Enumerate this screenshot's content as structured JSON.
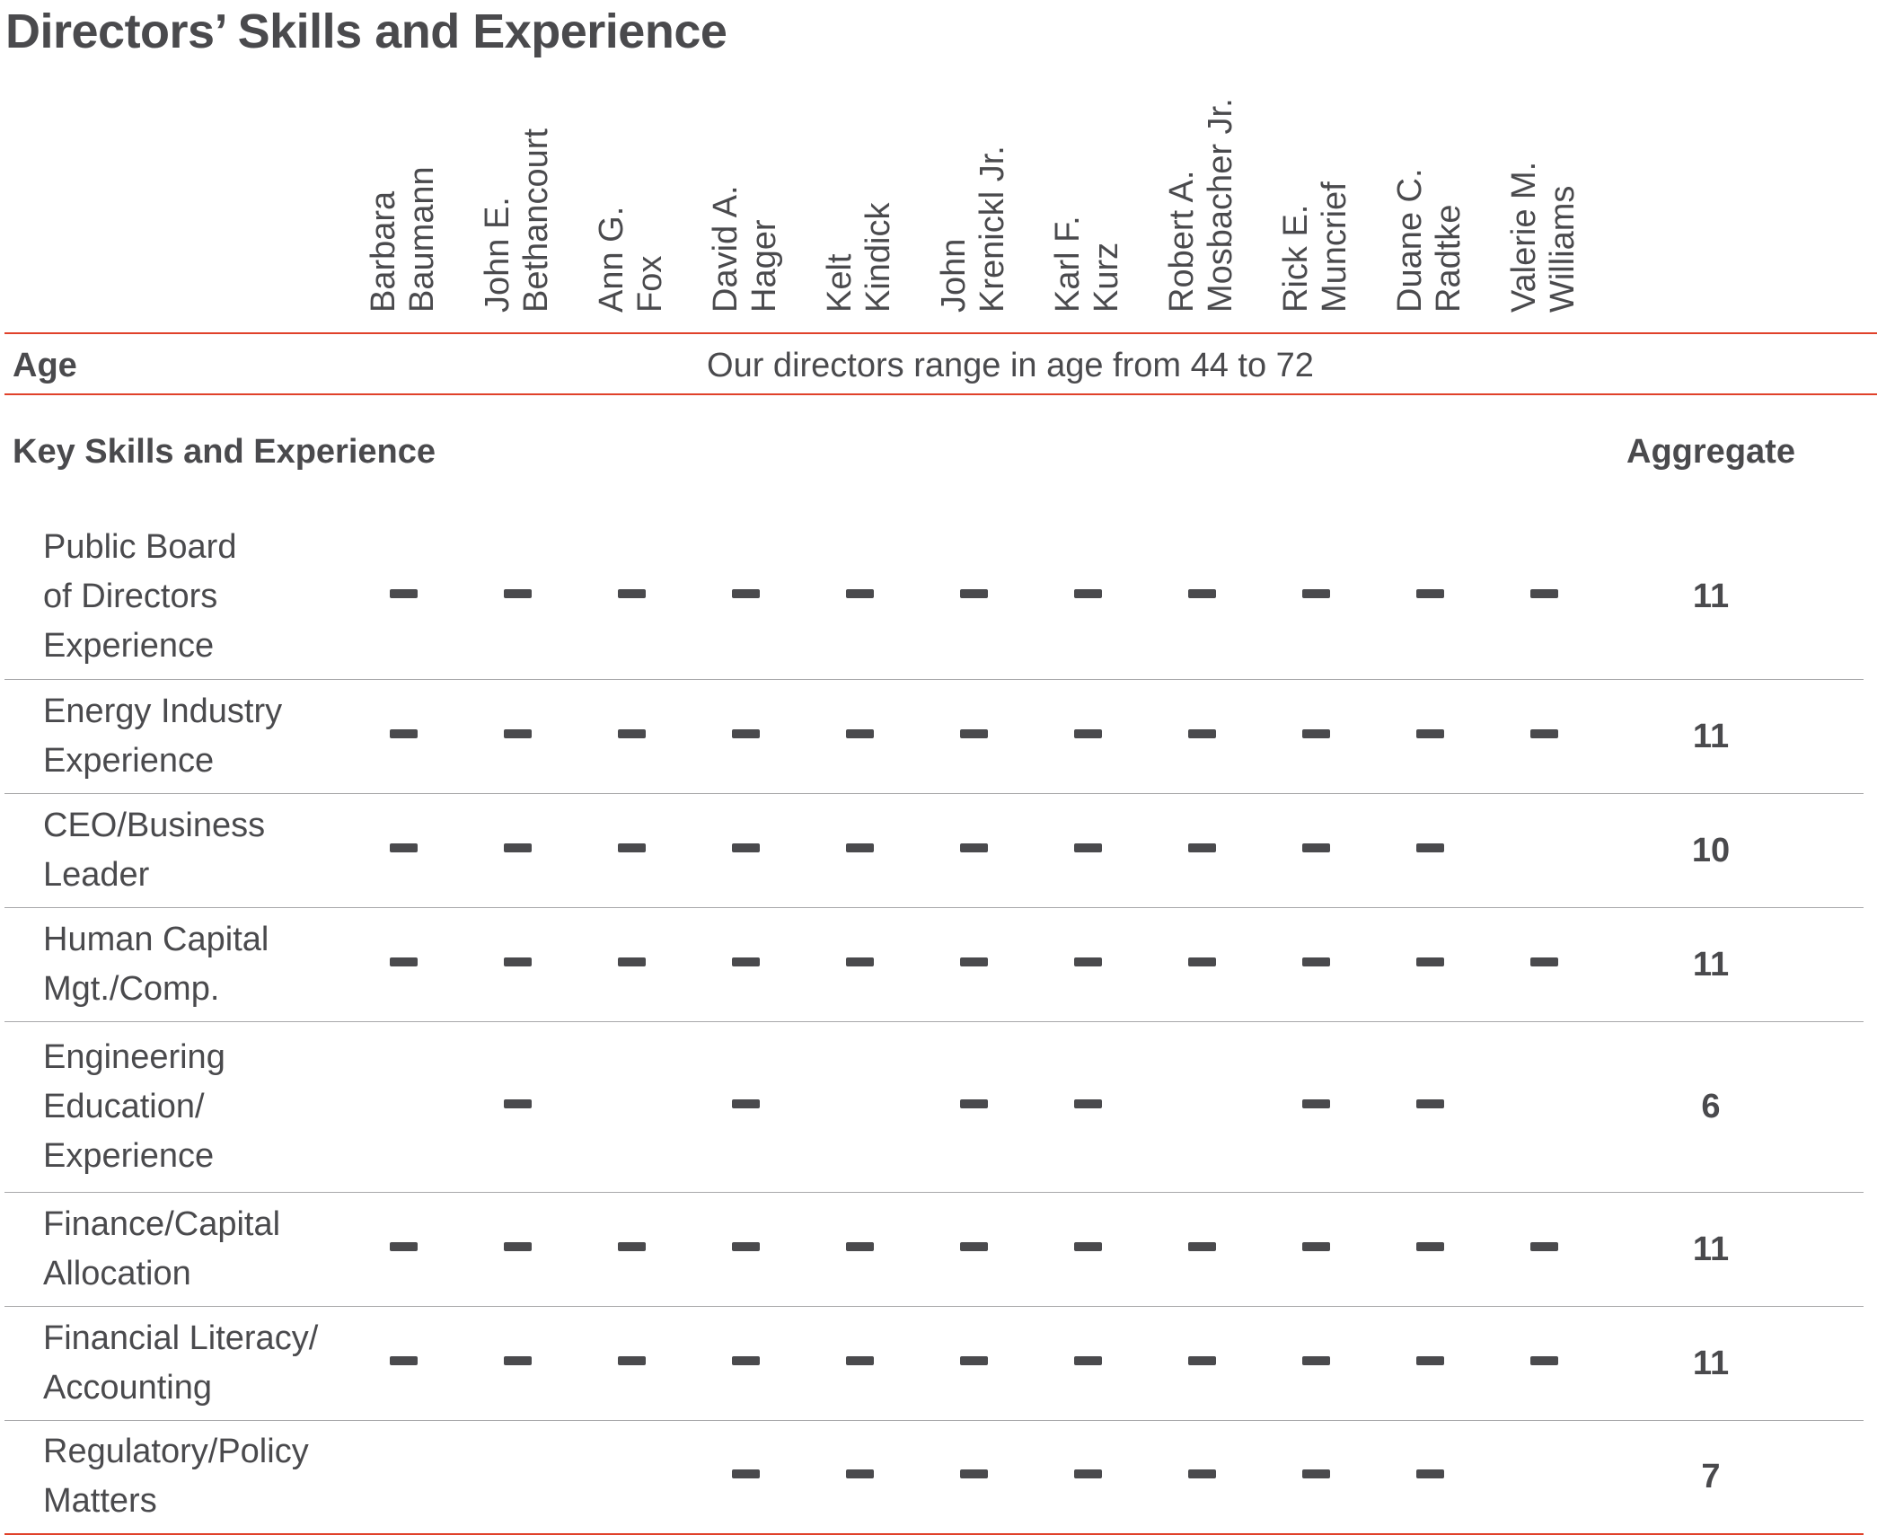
{
  "title": "Directors’ Skills and Experience",
  "directors": [
    {
      "first": "Barbara",
      "last": "Baumann"
    },
    {
      "first": "John E.",
      "last": "Bethancourt"
    },
    {
      "first": "Ann G.",
      "last": "Fox"
    },
    {
      "first": "David A.",
      "last": "Hager"
    },
    {
      "first": "Kelt",
      "last": "Kindick"
    },
    {
      "first": "John",
      "last": "Krenickl Jr."
    },
    {
      "first": "Karl F.",
      "last": "Kurz"
    },
    {
      "first": "Robert A.",
      "last": "Mosbacher Jr."
    },
    {
      "first": "Rick E.",
      "last": "Muncrief"
    },
    {
      "first": "Duane C.",
      "last": "Radtke"
    },
    {
      "first": "Valerie M.",
      "last": "Williams"
    }
  ],
  "age": {
    "label": "Age",
    "text": "Our directors range in age from 44 to 72"
  },
  "skills_section": {
    "label": "Key Skills and Experience",
    "aggregate_label": "Aggregate"
  },
  "skills": [
    {
      "label": "Public Board\nof Directors\nExperience",
      "marks": [
        1,
        1,
        1,
        1,
        1,
        1,
        1,
        1,
        1,
        1,
        1
      ],
      "aggregate": "11"
    },
    {
      "label": "Energy Industry\nExperience",
      "marks": [
        1,
        1,
        1,
        1,
        1,
        1,
        1,
        1,
        1,
        1,
        1
      ],
      "aggregate": "11"
    },
    {
      "label": "CEO/Business\nLeader",
      "marks": [
        1,
        1,
        1,
        1,
        1,
        1,
        1,
        1,
        1,
        1,
        0
      ],
      "aggregate": "10"
    },
    {
      "label": "Human Capital\nMgt./Comp.",
      "marks": [
        1,
        1,
        1,
        1,
        1,
        1,
        1,
        1,
        1,
        1,
        1
      ],
      "aggregate": "11"
    },
    {
      "label": "Engineering\nEducation/\nExperience",
      "marks": [
        0,
        1,
        0,
        1,
        0,
        1,
        1,
        0,
        1,
        1,
        0
      ],
      "aggregate": "6"
    },
    {
      "label": "Finance/Capital\nAllocation",
      "marks": [
        1,
        1,
        1,
        1,
        1,
        1,
        1,
        1,
        1,
        1,
        1
      ],
      "aggregate": "11"
    },
    {
      "label": "Financial Literacy/\nAccounting",
      "marks": [
        1,
        1,
        1,
        1,
        1,
        1,
        1,
        1,
        1,
        1,
        1
      ],
      "aggregate": "11"
    },
    {
      "label": "Regulatory/Policy\nMatters",
      "marks": [
        0,
        0,
        0,
        1,
        1,
        1,
        1,
        1,
        1,
        1,
        0
      ],
      "aggregate": "7"
    }
  ]
}
